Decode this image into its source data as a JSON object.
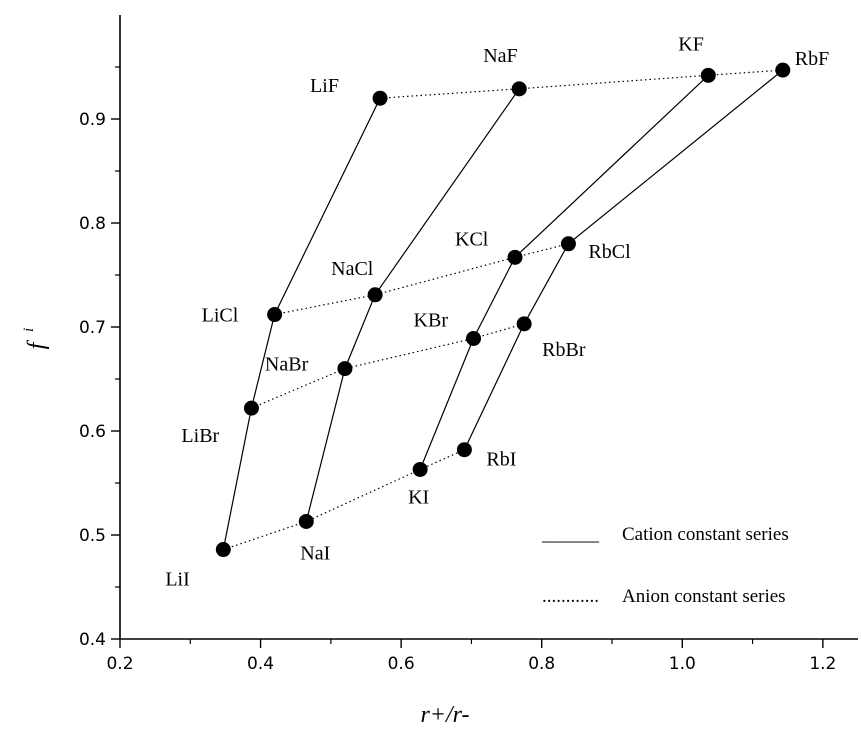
{
  "chart_data": {
    "type": "line",
    "xlabel": "r+/r-",
    "ylabel": "f",
    "ylabel_sup": "i",
    "xlim": [
      0.2,
      1.25
    ],
    "ylim": [
      0.4,
      1.0
    ],
    "x_ticks": [
      "0.2",
      "0.4",
      "0.6",
      "0.8",
      "1.0",
      "1.2"
    ],
    "y_ticks": [
      "0.4",
      "0.5",
      "0.6",
      "0.7",
      "0.8",
      "0.9"
    ],
    "points": [
      {
        "name": "LiF",
        "x": 0.57,
        "y": 0.92
      },
      {
        "name": "LiCl",
        "x": 0.42,
        "y": 0.712
      },
      {
        "name": "LiBr",
        "x": 0.387,
        "y": 0.622
      },
      {
        "name": "LiI",
        "x": 0.347,
        "y": 0.486
      },
      {
        "name": "NaF",
        "x": 0.768,
        "y": 0.929
      },
      {
        "name": "NaCl",
        "x": 0.563,
        "y": 0.731
      },
      {
        "name": "NaBr",
        "x": 0.52,
        "y": 0.66
      },
      {
        "name": "NaI",
        "x": 0.465,
        "y": 0.513
      },
      {
        "name": "KF",
        "x": 1.037,
        "y": 0.942
      },
      {
        "name": "KCl",
        "x": 0.762,
        "y": 0.767
      },
      {
        "name": "KBr",
        "x": 0.703,
        "y": 0.689
      },
      {
        "name": "KI",
        "x": 0.627,
        "y": 0.563
      },
      {
        "name": "RbF",
        "x": 1.143,
        "y": 0.947
      },
      {
        "name": "RbCl",
        "x": 0.838,
        "y": 0.78
      },
      {
        "name": "RbBr",
        "x": 0.775,
        "y": 0.703
      },
      {
        "name": "RbI",
        "x": 0.69,
        "y": 0.582
      }
    ],
    "cation_series": [
      [
        "LiF",
        "LiCl",
        "LiBr",
        "LiI"
      ],
      [
        "NaF",
        "NaCl",
        "NaBr",
        "NaI"
      ],
      [
        "KF",
        "KCl",
        "KBr",
        "KI"
      ],
      [
        "RbF",
        "RbCl",
        "RbBr",
        "RbI"
      ]
    ],
    "anion_series": [
      [
        "LiF",
        "NaF",
        "KF",
        "RbF"
      ],
      [
        "LiCl",
        "NaCl",
        "KCl",
        "RbCl"
      ],
      [
        "LiBr",
        "NaBr",
        "KBr",
        "RbBr"
      ],
      [
        "LiI",
        "NaI",
        "KI",
        "RbI"
      ]
    ],
    "legend": [
      {
        "line": "solid",
        "sample": "______",
        "label": "Cation constant series"
      },
      {
        "line": "dotted",
        "sample": "............",
        "label": "Anion constant series"
      }
    ]
  }
}
